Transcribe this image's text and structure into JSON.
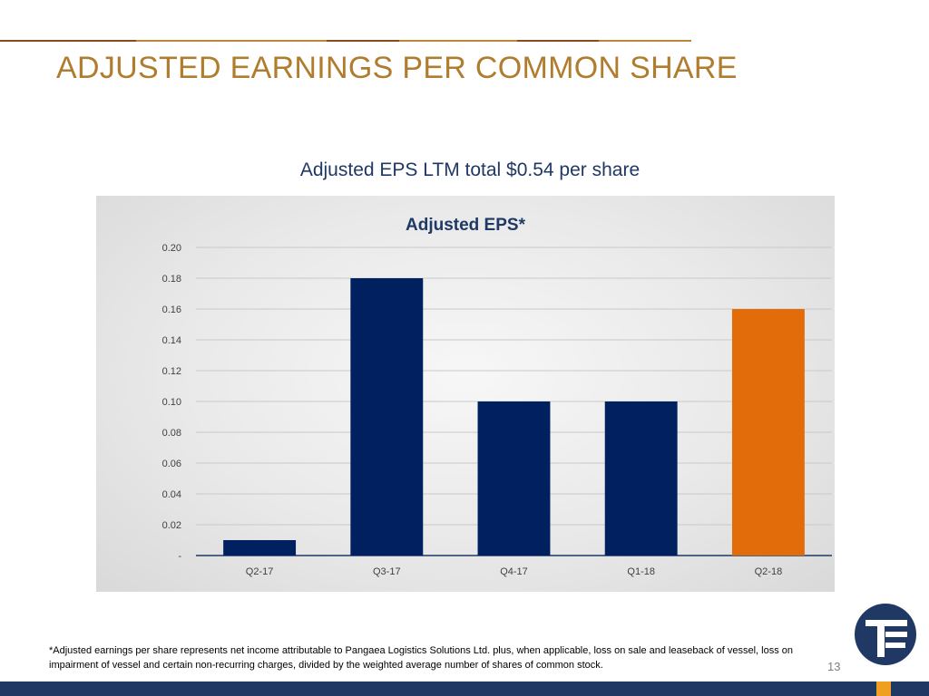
{
  "colors": {
    "title": "#b07d2e",
    "rule_gold": "#b8873b",
    "rule_brown": "#8a4b1a",
    "navy": "#002060",
    "orange": "#e26b0a",
    "chart_title": "#1f3864",
    "bottom_bar": "#1f3864",
    "accent": "#f0a020"
  },
  "page": {
    "title": "ADJUSTED EARNINGS PER COMMON SHARE",
    "subtitle": "Adjusted EPS LTM total $0.54 per share",
    "footnote": "*Adjusted earnings per share represents net income attributable to Pangaea Logistics Solutions Ltd. plus, when applicable, loss on sale and leaseback of vessel, loss on impairment of vessel and certain non-recurring charges, divided by the weighted average number of shares of common stock.",
    "page_number": "13",
    "logo_icon": "pangaea-logo-icon"
  },
  "chart_data": {
    "type": "bar",
    "title": "Adjusted EPS*",
    "categories": [
      "Q2-17",
      "Q3-17",
      "Q4-17",
      "Q1-18",
      "Q2-18"
    ],
    "values": [
      0.01,
      0.18,
      0.1,
      0.1,
      0.16
    ],
    "bar_colors": [
      "#002060",
      "#002060",
      "#002060",
      "#002060",
      "#e26b0a"
    ],
    "yticks": [
      "-",
      "0.02",
      "0.04",
      "0.06",
      "0.08",
      "0.10",
      "0.12",
      "0.14",
      "0.16",
      "0.18",
      "0.20"
    ],
    "ylim": [
      0,
      0.2
    ],
    "xlabel": "",
    "ylabel": "",
    "grid": true,
    "legend": "none"
  }
}
